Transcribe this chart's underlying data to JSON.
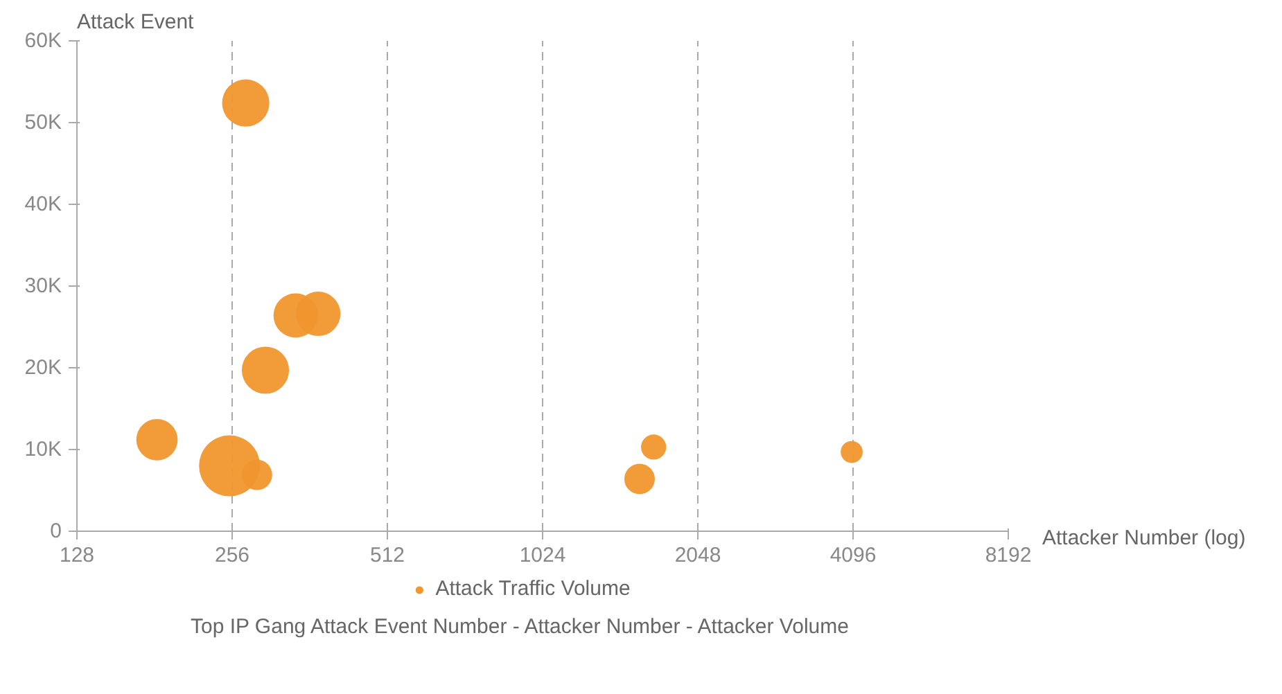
{
  "chart_data": {
    "type": "bubble",
    "title": "Top IP Gang Attack Event Number - Attacker Number - Attacker Volume",
    "xlabel": "Attacker Number (log)",
    "ylabel": "Attack Event",
    "log": "x",
    "x": [
      272,
      183,
      253,
      286,
      297,
      340,
      376,
      1579,
      1681,
      4071
    ],
    "series": [
      {
        "name": "Attack Traffic Volume",
        "color": "#f0962e",
        "values": [
          52400,
          11200,
          8000,
          6900,
          19700,
          26400,
          26600,
          6400,
          10300,
          9700
        ],
        "sizes": [
          0.6,
          0.46,
          1,
          0.25,
          0.6,
          0.53,
          0.53,
          0.25,
          0.17,
          0.13
        ]
      }
    ],
    "xlim": [
      128,
      8192
    ],
    "xticks": [
      128,
      256,
      512,
      1024,
      2048,
      4096,
      8192
    ],
    "ylim": [
      0,
      60000
    ],
    "yticks": [
      {
        "value": 0,
        "label": "0"
      },
      {
        "value": 10000,
        "label": "10K"
      },
      {
        "value": 20000,
        "label": "20K"
      },
      {
        "value": 30000,
        "label": "30K"
      },
      {
        "value": 40000,
        "label": "40K"
      },
      {
        "value": 50000,
        "label": "50K"
      },
      {
        "value": 60000,
        "label": "60K"
      }
    ],
    "grid": "x",
    "legend": "bottom"
  }
}
